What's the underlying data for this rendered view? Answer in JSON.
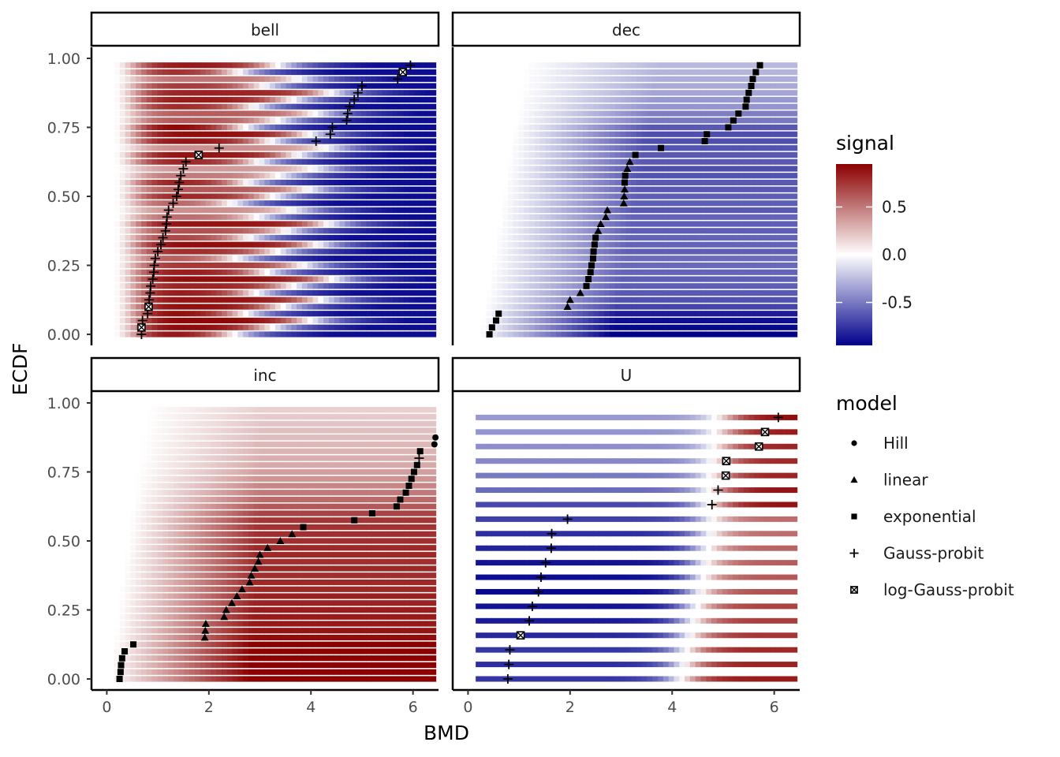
{
  "chart_data": {
    "type": "heatmap",
    "xlabel": "BMD",
    "ylabel": "ECDF",
    "xlim": [
      -0.3,
      6.5
    ],
    "ylim": [
      -0.04,
      1.04
    ],
    "x_ticks": [
      0,
      2,
      4,
      6
    ],
    "y_ticks": [
      0.0,
      0.25,
      0.5,
      0.75,
      1.0
    ],
    "x_tick_labels": [
      "0",
      "2",
      "4",
      "6"
    ],
    "y_tick_labels": [
      "0.00",
      "0.25",
      "0.50",
      "0.75",
      "1.00"
    ],
    "fill_scale": {
      "title": "signal",
      "low_color": "#00008B",
      "mid_color": "#FFFFFF",
      "high_color": "#8B0000",
      "limits": [
        -0.95,
        0.95
      ],
      "breaks": [
        0.5,
        0.0,
        -0.5
      ],
      "break_labels": [
        "0.5",
        "0.0",
        "-0.5"
      ]
    },
    "shape_legend": {
      "title": "model",
      "entries": [
        {
          "name": "Hill",
          "shape": "circle"
        },
        {
          "name": "linear",
          "shape": "triangle"
        },
        {
          "name": "exponential",
          "shape": "square"
        },
        {
          "name": "Gauss-probit",
          "shape": "plus"
        },
        {
          "name": "log-Gauss-probit",
          "shape": "boxcross"
        }
      ]
    },
    "panels": [
      {
        "name": "bell",
        "n_rows": 40,
        "row_signal": [
          0.92,
          0.92,
          0.93,
          0.93,
          0.9,
          0.88,
          0.86,
          0.82,
          0.9,
          0.85,
          0.74,
          0.62,
          0.78,
          0.9,
          0.7,
          0.65,
          0.88,
          0.55,
          0.42,
          0.6,
          0.8,
          0.62,
          0.84,
          0.5,
          0.38,
          0.82,
          0.88,
          0.42,
          0.88,
          0.9,
          0.95,
          0.62,
          0.6,
          0.8,
          0.85,
          0.82,
          0.74,
          0.52,
          0.8,
          0.86
        ],
        "points": [
          {
            "x": 0.68,
            "y": 0.0,
            "m": "plus"
          },
          {
            "x": 0.68,
            "y": 0.025,
            "m": "boxcross"
          },
          {
            "x": 0.7,
            "y": 0.05,
            "m": "plus"
          },
          {
            "x": 0.8,
            "y": 0.075,
            "m": "plus"
          },
          {
            "x": 0.82,
            "y": 0.1,
            "m": "boxcross"
          },
          {
            "x": 0.83,
            "y": 0.125,
            "m": "plus"
          },
          {
            "x": 0.85,
            "y": 0.15,
            "m": "plus"
          },
          {
            "x": 0.86,
            "y": 0.175,
            "m": "plus"
          },
          {
            "x": 0.9,
            "y": 0.2,
            "m": "plus"
          },
          {
            "x": 0.92,
            "y": 0.225,
            "m": "plus"
          },
          {
            "x": 0.93,
            "y": 0.25,
            "m": "plus"
          },
          {
            "x": 0.95,
            "y": 0.275,
            "m": "plus"
          },
          {
            "x": 1.0,
            "y": 0.3,
            "m": "plus"
          },
          {
            "x": 1.06,
            "y": 0.325,
            "m": "plus"
          },
          {
            "x": 1.1,
            "y": 0.35,
            "m": "plus"
          },
          {
            "x": 1.15,
            "y": 0.375,
            "m": "plus"
          },
          {
            "x": 1.17,
            "y": 0.4,
            "m": "plus"
          },
          {
            "x": 1.18,
            "y": 0.425,
            "m": "plus"
          },
          {
            "x": 1.21,
            "y": 0.45,
            "m": "plus"
          },
          {
            "x": 1.3,
            "y": 0.475,
            "m": "plus"
          },
          {
            "x": 1.37,
            "y": 0.5,
            "m": "plus"
          },
          {
            "x": 1.4,
            "y": 0.525,
            "m": "plus"
          },
          {
            "x": 1.42,
            "y": 0.55,
            "m": "plus"
          },
          {
            "x": 1.45,
            "y": 0.575,
            "m": "plus"
          },
          {
            "x": 1.5,
            "y": 0.6,
            "m": "plus"
          },
          {
            "x": 1.55,
            "y": 0.625,
            "m": "plus"
          },
          {
            "x": 1.8,
            "y": 0.65,
            "m": "boxcross"
          },
          {
            "x": 2.2,
            "y": 0.675,
            "m": "plus"
          },
          {
            "x": 4.1,
            "y": 0.7,
            "m": "plus"
          },
          {
            "x": 4.38,
            "y": 0.725,
            "m": "plus"
          },
          {
            "x": 4.42,
            "y": 0.75,
            "m": "plus"
          },
          {
            "x": 4.7,
            "y": 0.775,
            "m": "plus"
          },
          {
            "x": 4.72,
            "y": 0.8,
            "m": "plus"
          },
          {
            "x": 4.76,
            "y": 0.825,
            "m": "plus"
          },
          {
            "x": 4.85,
            "y": 0.85,
            "m": "plus"
          },
          {
            "x": 4.92,
            "y": 0.875,
            "m": "plus"
          },
          {
            "x": 5.0,
            "y": 0.9,
            "m": "plus"
          },
          {
            "x": 5.7,
            "y": 0.925,
            "m": "plus"
          },
          {
            "x": 5.8,
            "y": 0.95,
            "m": "boxcross"
          },
          {
            "x": 5.95,
            "y": 0.975,
            "m": "plus"
          }
        ]
      },
      {
        "name": "dec",
        "n_rows": 40,
        "row_signal": [
          -0.95,
          -0.92,
          -0.9,
          -0.85,
          -0.7,
          -0.65,
          -0.62,
          -0.6,
          -0.6,
          -0.58,
          -0.56,
          -0.55,
          -0.6,
          -0.58,
          -0.58,
          -0.6,
          -0.6,
          -0.58,
          -0.62,
          -0.6,
          -0.6,
          -0.62,
          -0.62,
          -0.64,
          -0.66,
          -0.62,
          -0.62,
          -0.64,
          -0.66,
          -0.66,
          -0.62,
          -0.5,
          -0.48,
          -0.4,
          -0.38,
          -0.34,
          -0.32,
          -0.3,
          -0.28,
          -0.26
        ],
        "points": [
          {
            "x": 0.42,
            "y": 0.0,
            "m": "square"
          },
          {
            "x": 0.47,
            "y": 0.025,
            "m": "square"
          },
          {
            "x": 0.55,
            "y": 0.05,
            "m": "square"
          },
          {
            "x": 0.6,
            "y": 0.075,
            "m": "square"
          },
          {
            "x": 1.95,
            "y": 0.1,
            "m": "triangle"
          },
          {
            "x": 2.0,
            "y": 0.125,
            "m": "triangle"
          },
          {
            "x": 2.2,
            "y": 0.15,
            "m": "triangle"
          },
          {
            "x": 2.32,
            "y": 0.175,
            "m": "square"
          },
          {
            "x": 2.36,
            "y": 0.2,
            "m": "square"
          },
          {
            "x": 2.4,
            "y": 0.225,
            "m": "square"
          },
          {
            "x": 2.42,
            "y": 0.25,
            "m": "square"
          },
          {
            "x": 2.45,
            "y": 0.275,
            "m": "square"
          },
          {
            "x": 2.46,
            "y": 0.3,
            "m": "square"
          },
          {
            "x": 2.48,
            "y": 0.325,
            "m": "square"
          },
          {
            "x": 2.5,
            "y": 0.35,
            "m": "square"
          },
          {
            "x": 2.55,
            "y": 0.375,
            "m": "triangle"
          },
          {
            "x": 2.6,
            "y": 0.4,
            "m": "triangle"
          },
          {
            "x": 2.7,
            "y": 0.425,
            "m": "triangle"
          },
          {
            "x": 2.73,
            "y": 0.45,
            "m": "triangle"
          },
          {
            "x": 3.05,
            "y": 0.475,
            "m": "triangle"
          },
          {
            "x": 3.06,
            "y": 0.5,
            "m": "triangle"
          },
          {
            "x": 3.07,
            "y": 0.525,
            "m": "triangle"
          },
          {
            "x": 3.07,
            "y": 0.55,
            "m": "square"
          },
          {
            "x": 3.08,
            "y": 0.575,
            "m": "square"
          },
          {
            "x": 3.12,
            "y": 0.6,
            "m": "triangle"
          },
          {
            "x": 3.17,
            "y": 0.625,
            "m": "triangle"
          },
          {
            "x": 3.28,
            "y": 0.65,
            "m": "square"
          },
          {
            "x": 3.78,
            "y": 0.675,
            "m": "square"
          },
          {
            "x": 4.64,
            "y": 0.7,
            "m": "square"
          },
          {
            "x": 4.68,
            "y": 0.725,
            "m": "square"
          },
          {
            "x": 5.1,
            "y": 0.75,
            "m": "square"
          },
          {
            "x": 5.2,
            "y": 0.775,
            "m": "square"
          },
          {
            "x": 5.3,
            "y": 0.8,
            "m": "square"
          },
          {
            "x": 5.44,
            "y": 0.825,
            "m": "square"
          },
          {
            "x": 5.46,
            "y": 0.85,
            "m": "square"
          },
          {
            "x": 5.5,
            "y": 0.875,
            "m": "square"
          },
          {
            "x": 5.55,
            "y": 0.9,
            "m": "square"
          },
          {
            "x": 5.58,
            "y": 0.925,
            "m": "square"
          },
          {
            "x": 5.64,
            "y": 0.95,
            "m": "square"
          },
          {
            "x": 5.72,
            "y": 0.975,
            "m": "square"
          }
        ]
      },
      {
        "name": "inc",
        "n_rows": 40,
        "row_signal": [
          0.95,
          0.95,
          0.95,
          0.95,
          0.95,
          0.95,
          0.9,
          0.88,
          0.86,
          0.85,
          0.84,
          0.82,
          0.83,
          0.8,
          0.8,
          0.78,
          0.8,
          0.78,
          0.8,
          0.8,
          0.78,
          0.78,
          0.76,
          0.75,
          0.7,
          0.62,
          0.55,
          0.5,
          0.45,
          0.4,
          0.36,
          0.32,
          0.3,
          0.28,
          0.27,
          0.25,
          0.24,
          0.22,
          0.2,
          0.18
        ],
        "points": [
          {
            "x": 0.25,
            "y": 0.0,
            "m": "square"
          },
          {
            "x": 0.27,
            "y": 0.025,
            "m": "square"
          },
          {
            "x": 0.28,
            "y": 0.05,
            "m": "square"
          },
          {
            "x": 0.3,
            "y": 0.075,
            "m": "square"
          },
          {
            "x": 0.35,
            "y": 0.1,
            "m": "square"
          },
          {
            "x": 0.52,
            "y": 0.125,
            "m": "square"
          },
          {
            "x": 1.92,
            "y": 0.15,
            "m": "triangle"
          },
          {
            "x": 1.93,
            "y": 0.175,
            "m": "triangle"
          },
          {
            "x": 1.94,
            "y": 0.2,
            "m": "triangle"
          },
          {
            "x": 2.3,
            "y": 0.225,
            "m": "triangle"
          },
          {
            "x": 2.34,
            "y": 0.25,
            "m": "triangle"
          },
          {
            "x": 2.45,
            "y": 0.275,
            "m": "triangle"
          },
          {
            "x": 2.55,
            "y": 0.3,
            "m": "triangle"
          },
          {
            "x": 2.65,
            "y": 0.325,
            "m": "triangle"
          },
          {
            "x": 2.8,
            "y": 0.35,
            "m": "triangle"
          },
          {
            "x": 2.83,
            "y": 0.375,
            "m": "triangle"
          },
          {
            "x": 2.9,
            "y": 0.4,
            "m": "triangle"
          },
          {
            "x": 2.97,
            "y": 0.425,
            "m": "triangle"
          },
          {
            "x": 3.0,
            "y": 0.45,
            "m": "triangle"
          },
          {
            "x": 3.15,
            "y": 0.475,
            "m": "triangle"
          },
          {
            "x": 3.4,
            "y": 0.5,
            "m": "triangle"
          },
          {
            "x": 3.63,
            "y": 0.525,
            "m": "triangle"
          },
          {
            "x": 3.85,
            "y": 0.55,
            "m": "square"
          },
          {
            "x": 4.85,
            "y": 0.575,
            "m": "square"
          },
          {
            "x": 5.2,
            "y": 0.6,
            "m": "square"
          },
          {
            "x": 5.68,
            "y": 0.625,
            "m": "square"
          },
          {
            "x": 5.75,
            "y": 0.65,
            "m": "square"
          },
          {
            "x": 5.86,
            "y": 0.675,
            "m": "square"
          },
          {
            "x": 5.92,
            "y": 0.7,
            "m": "square"
          },
          {
            "x": 5.97,
            "y": 0.725,
            "m": "square"
          },
          {
            "x": 6.02,
            "y": 0.75,
            "m": "square"
          },
          {
            "x": 6.08,
            "y": 0.775,
            "m": "square"
          },
          {
            "x": 6.12,
            "y": 0.8,
            "m": "plus"
          },
          {
            "x": 6.14,
            "y": 0.825,
            "m": "square"
          },
          {
            "x": 6.42,
            "y": 0.85,
            "m": "circle"
          },
          {
            "x": 6.44,
            "y": 0.875,
            "m": "circle"
          }
        ]
      },
      {
        "name": "U",
        "n_rows": 19,
        "row_signal": [
          -0.75,
          -0.78,
          -0.75,
          -0.8,
          -0.85,
          -0.88,
          -0.92,
          -0.9,
          -0.88,
          -0.82,
          -0.78,
          -0.72,
          -0.68,
          -0.55,
          -0.5,
          -0.45,
          -0.42,
          -0.4,
          -0.38
        ],
        "row_right_color": [
          0.85,
          0.82,
          0.8,
          0.75,
          0.72,
          0.7,
          0.65,
          0.62,
          0.6,
          0.58,
          0.55,
          0.55,
          0.88,
          0.88,
          0.82,
          0.8,
          0.82,
          0.85,
          0.9
        ],
        "points": [
          {
            "x": 0.78,
            "y": 0.0,
            "m": "plus"
          },
          {
            "x": 0.8,
            "y": 0.0526,
            "m": "plus"
          },
          {
            "x": 0.82,
            "y": 0.1053,
            "m": "plus"
          },
          {
            "x": 1.03,
            "y": 0.1579,
            "m": "boxcross"
          },
          {
            "x": 1.2,
            "y": 0.2105,
            "m": "plus"
          },
          {
            "x": 1.26,
            "y": 0.2632,
            "m": "plus"
          },
          {
            "x": 1.38,
            "y": 0.3158,
            "m": "plus"
          },
          {
            "x": 1.43,
            "y": 0.3684,
            "m": "plus"
          },
          {
            "x": 1.52,
            "y": 0.4211,
            "m": "plus"
          },
          {
            "x": 1.63,
            "y": 0.4737,
            "m": "plus"
          },
          {
            "x": 1.64,
            "y": 0.5263,
            "m": "plus"
          },
          {
            "x": 1.95,
            "y": 0.5789,
            "m": "plus"
          },
          {
            "x": 4.78,
            "y": 0.6316,
            "m": "plus"
          },
          {
            "x": 4.9,
            "y": 0.6842,
            "m": "plus"
          },
          {
            "x": 5.05,
            "y": 0.7368,
            "m": "boxcross"
          },
          {
            "x": 5.06,
            "y": 0.7895,
            "m": "boxcross"
          },
          {
            "x": 5.7,
            "y": 0.8421,
            "m": "boxcross"
          },
          {
            "x": 5.82,
            "y": 0.8947,
            "m": "boxcross"
          },
          {
            "x": 6.08,
            "y": 0.9474,
            "m": "plus"
          }
        ]
      }
    ]
  }
}
